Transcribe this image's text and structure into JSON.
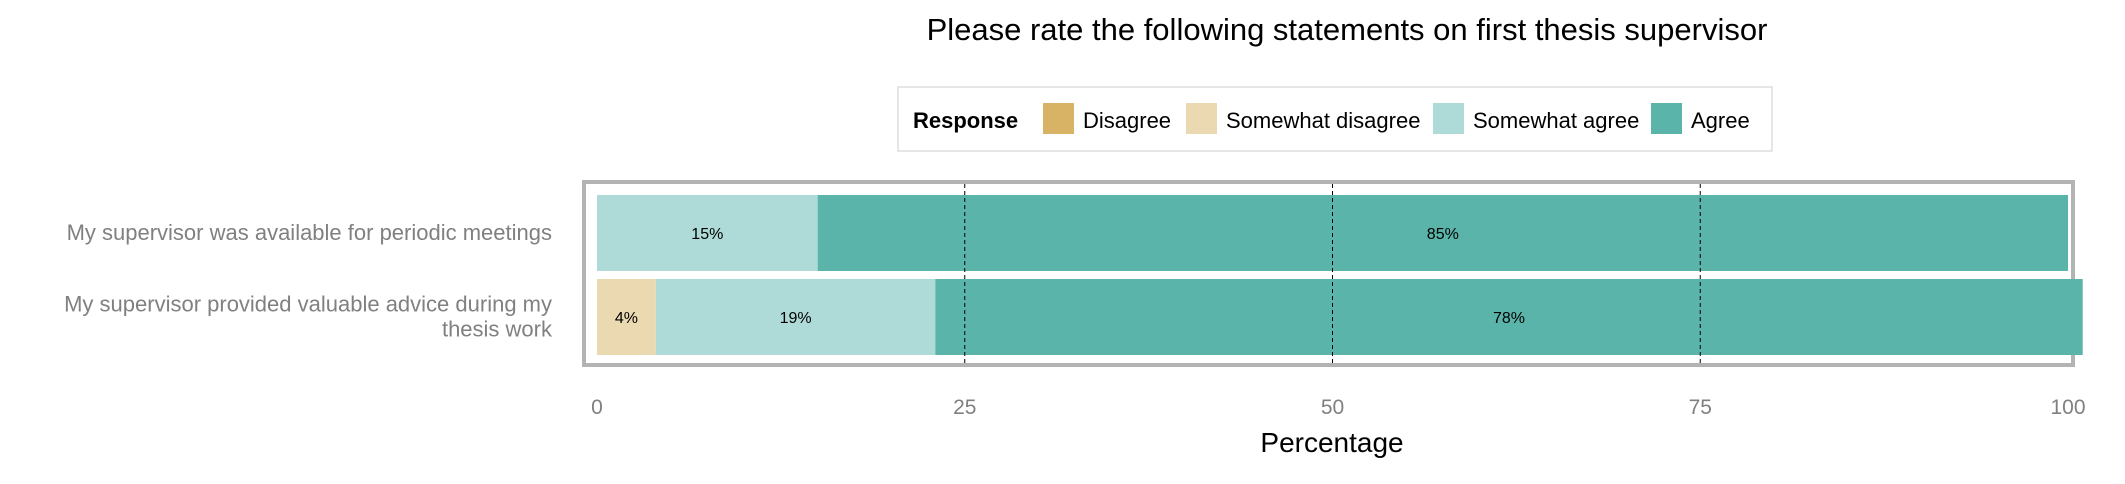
{
  "chart_data": {
    "type": "bar",
    "orientation": "horizontal",
    "stacked": true,
    "title": "Please rate the following statements on first thesis supervisor",
    "xlabel": "Percentage",
    "ylabel": "",
    "xlim": [
      0,
      100
    ],
    "x_ticks": [
      "0",
      "25",
      "50",
      "75",
      "100"
    ],
    "grid": true,
    "legend": {
      "title": "Response",
      "position": "top",
      "entries": [
        "Disagree",
        "Somewhat disagree",
        "Somewhat agree",
        "Agree"
      ]
    },
    "colors": {
      "Disagree": "#d9b365",
      "Somewhat disagree": "#ebd9b2",
      "Somewhat agree": "#aedbd7",
      "Agree": "#5ab4aa"
    },
    "categories": [
      "My supervisor was available for periodic meetings",
      "My supervisor provided valuable advice during my thesis work"
    ],
    "category_label_lines": [
      [
        "My supervisor was available for periodic meetings"
      ],
      [
        "My supervisor provided valuable advice during my",
        "thesis work"
      ]
    ],
    "series": [
      {
        "name": "Disagree",
        "values": [
          0,
          0
        ],
        "labels": [
          "",
          ""
        ]
      },
      {
        "name": "Somewhat disagree",
        "values": [
          0,
          4
        ],
        "labels": [
          "",
          "4%"
        ]
      },
      {
        "name": "Somewhat agree",
        "values": [
          15,
          19
        ],
        "labels": [
          "15%",
          "19%"
        ]
      },
      {
        "name": "Agree",
        "values": [
          85,
          78
        ],
        "labels": [
          "85%",
          "78%"
        ]
      }
    ]
  }
}
